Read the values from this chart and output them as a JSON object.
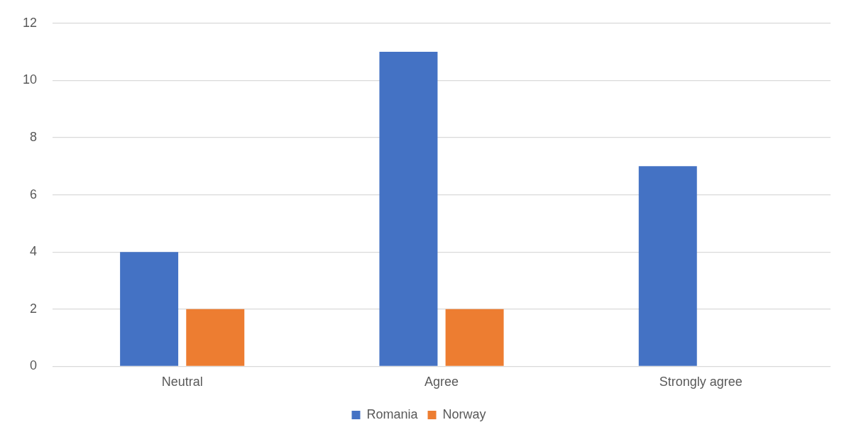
{
  "chart_data": {
    "type": "bar",
    "categories": [
      "Neutral",
      "Agree",
      "Strongly agree"
    ],
    "series": [
      {
        "name": "Romania",
        "color": "#4472c4",
        "values": [
          4,
          11,
          7
        ]
      },
      {
        "name": "Norway",
        "color": "#ed7d31",
        "values": [
          2,
          2,
          0
        ]
      }
    ],
    "ylim": [
      0,
      12
    ],
    "yticks": [
      0,
      2,
      4,
      6,
      8,
      10,
      12
    ],
    "grid": "y",
    "legend": "bottom"
  }
}
